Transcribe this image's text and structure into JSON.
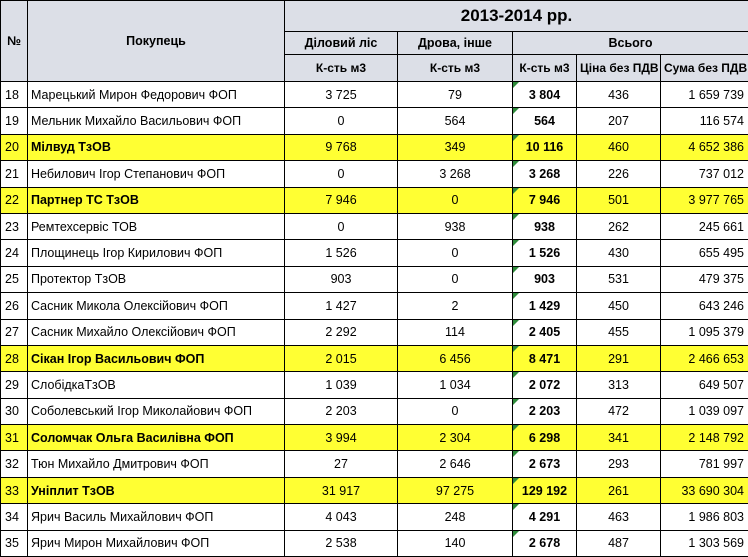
{
  "header": {
    "no": "№",
    "buyer": "Покупець",
    "period": "2013-2014 рр.",
    "timber": "Діловий ліс",
    "firewood": "Дрова, інше",
    "total": "Всього",
    "unit_volume": "К-сть м3",
    "unit_price": "Ціна без ПДВ",
    "unit_sum": "Сума без ПДВ"
  },
  "rows": [
    {
      "no": "18",
      "name": "Марецький Мирон Федорович ФОП",
      "timber": "3 725",
      "firewood": "79",
      "qty": "3 804",
      "price": "436",
      "sum": "1 659 739",
      "highlight": false
    },
    {
      "no": "19",
      "name": "Мельник Михайло Васильович ФОП",
      "timber": "0",
      "firewood": "564",
      "qty": "564",
      "price": "207",
      "sum": "116 574",
      "highlight": false
    },
    {
      "no": "20",
      "name": "Мілвуд ТзОВ",
      "timber": "9 768",
      "firewood": "349",
      "qty": "10 116",
      "price": "460",
      "sum": "4 652 386",
      "highlight": true
    },
    {
      "no": "21",
      "name": "Небилович Ігор Степанович ФОП",
      "timber": "0",
      "firewood": "3 268",
      "qty": "3 268",
      "price": "226",
      "sum": "737 012",
      "highlight": false
    },
    {
      "no": "22",
      "name": "Партнер ТС  ТзОВ",
      "timber": "7 946",
      "firewood": "0",
      "qty": "7 946",
      "price": "501",
      "sum": "3 977 765",
      "highlight": true
    },
    {
      "no": "23",
      "name": "Ремтехсервіс ТОВ",
      "timber": "0",
      "firewood": "938",
      "qty": "938",
      "price": "262",
      "sum": "245 661",
      "highlight": false
    },
    {
      "no": "24",
      "name": "Площинець Ігор Кирилович  ФОП",
      "timber": "1 526",
      "firewood": "0",
      "qty": "1 526",
      "price": "430",
      "sum": "655 495",
      "highlight": false
    },
    {
      "no": "25",
      "name": "Протектор ТзОВ",
      "timber": "903",
      "firewood": "0",
      "qty": "903",
      "price": "531",
      "sum": "479 375",
      "highlight": false
    },
    {
      "no": "26",
      "name": "Сасник Микола Олексійович ФОП",
      "timber": "1 427",
      "firewood": "2",
      "qty": "1 429",
      "price": "450",
      "sum": "643 246",
      "highlight": false
    },
    {
      "no": "27",
      "name": "Сасник Михайло Олексійович ФОП",
      "timber": "2 292",
      "firewood": "114",
      "qty": "2 405",
      "price": "455",
      "sum": "1 095 379",
      "highlight": false
    },
    {
      "no": "28",
      "name": "Сікан Ігор Васильович ФОП",
      "timber": "2 015",
      "firewood": "6 456",
      "qty": "8 471",
      "price": "291",
      "sum": "2 466 653",
      "highlight": true
    },
    {
      "no": "29",
      "name": "СлобідкаТзОВ",
      "timber": "1 039",
      "firewood": "1 034",
      "qty": "2 072",
      "price": "313",
      "sum": "649 507",
      "highlight": false
    },
    {
      "no": "30",
      "name": "Соболевський Ігор Миколайович  ФОП",
      "timber": "2 203",
      "firewood": "0",
      "qty": "2 203",
      "price": "472",
      "sum": "1 039 097",
      "highlight": false
    },
    {
      "no": "31",
      "name": "Соломчак Ольга Василівна ФОП",
      "timber": "3 994",
      "firewood": "2 304",
      "qty": "6 298",
      "price": "341",
      "sum": "2 148 792",
      "highlight": true
    },
    {
      "no": "32",
      "name": "Тюн Михайло Дмитрович ФОП",
      "timber": "27",
      "firewood": "2 646",
      "qty": "2 673",
      "price": "293",
      "sum": "781 997",
      "highlight": false
    },
    {
      "no": "33",
      "name": "Уніплит ТзОВ",
      "timber": "31 917",
      "firewood": "97 275",
      "qty": "129 192",
      "price": "261",
      "sum": "33 690 304",
      "highlight": true
    },
    {
      "no": "34",
      "name": "Ярич Василь Михайлович  ФОП",
      "timber": "4 043",
      "firewood": "248",
      "qty": "4 291",
      "price": "463",
      "sum": "1 986 803",
      "highlight": false
    },
    {
      "no": "35",
      "name": "Ярич Мирон Михайлович  ФОП",
      "timber": "2 538",
      "firewood": "140",
      "qty": "2 678",
      "price": "487",
      "sum": "1 303 569",
      "highlight": false
    }
  ],
  "colors": {
    "header_bg": "#dcdfe7",
    "highlight_bg": "#ffff33",
    "corner_marker": "#2e8b3a"
  }
}
